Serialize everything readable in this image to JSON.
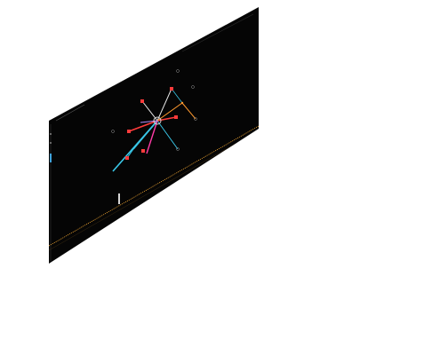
{
  "screen": {
    "background": "#ffffff",
    "panel_background": "#050505"
  },
  "left_sidebar": {
    "items": [
      {
        "icon": "dot-icon",
        "state": "inactive"
      },
      {
        "icon": "dot-icon",
        "state": "inactive"
      },
      {
        "icon": "dot-icon",
        "state": "active"
      }
    ]
  },
  "graph": {
    "hub": {
      "icon": "circle-node-icon",
      "color": "#d8d8d8"
    },
    "nodes": [
      {
        "color": "#ff3b3b",
        "icon": "square-node-icon"
      },
      {
        "color": "#ff3b3b",
        "icon": "square-node-icon"
      },
      {
        "color": "#ff3b3b",
        "icon": "square-node-icon"
      },
      {
        "color": "#ff3b3b",
        "icon": "square-node-icon"
      },
      {
        "color": "#ff3b3b",
        "icon": "square-node-icon"
      },
      {
        "color": "#ff3b3b",
        "icon": "square-node-icon"
      },
      {
        "color": "#9a9a9a",
        "icon": "outline-node-icon"
      },
      {
        "color": "#9a9a9a",
        "icon": "outline-node-icon"
      },
      {
        "color": "#9a9a9a",
        "icon": "outline-node-icon"
      },
      {
        "color": "#9a9a9a",
        "icon": "outline-node-icon"
      }
    ],
    "edge_colors": {
      "cyan": "#39c6e6",
      "red": "#ff3b3b",
      "magenta": "#ff3ba6",
      "orange": "#ff9a2e",
      "white": "#e8e8e8"
    }
  },
  "player": {
    "controls": [
      {
        "icon": "previous-icon"
      },
      {
        "icon": "play-icon"
      },
      {
        "icon": "next-icon"
      }
    ],
    "timeline_color": "#e8a030",
    "marker_color": "#d6d6d6"
  }
}
